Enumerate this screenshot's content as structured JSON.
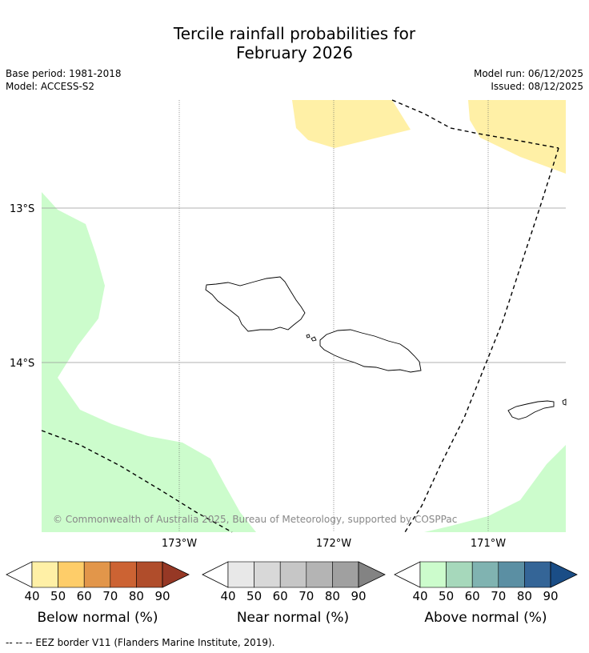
{
  "title_line1": "Tercile rainfall probabilities for",
  "title_line2": "February 2026",
  "meta": {
    "base_period": "Base period: 1981-2018",
    "model": "Model: ACCESS-S2",
    "model_run": "Model run: 06/12/2025",
    "issued": "Issued: 08/12/2025"
  },
  "map": {
    "lat_labels": [
      "13°S",
      "14°S"
    ],
    "lon_labels": [
      "173°W",
      "172°W",
      "171°W"
    ],
    "copyright": "© Commonwealth of Australia 2025, Bureau of Meteorology, supported by COSPPac",
    "colors": {
      "below_40": "#fff0a6",
      "above_40": "#ccfccc",
      "grid": "#999999",
      "eez": "#000000"
    }
  },
  "colorbars": [
    {
      "name": "below",
      "label": "Below normal (%)",
      "ticks": [
        "40",
        "50",
        "60",
        "70",
        "80",
        "90"
      ],
      "colors": [
        "#fff0a6",
        "#fecd69",
        "#e2964a",
        "#cc6333",
        "#b04d2b",
        "#963825"
      ]
    },
    {
      "name": "near",
      "label": "Near normal (%)",
      "ticks": [
        "40",
        "50",
        "60",
        "70",
        "80",
        "90"
      ],
      "colors": [
        "#e8e8e8",
        "#d8d8d8",
        "#c6c6c6",
        "#b4b4b4",
        "#a0a0a0",
        "#838383"
      ]
    },
    {
      "name": "above",
      "label": "Above normal (%)",
      "ticks": [
        "40",
        "50",
        "60",
        "70",
        "80",
        "90"
      ],
      "colors": [
        "#ccfccc",
        "#a6d8bb",
        "#80b3b1",
        "#5b8fa3",
        "#346597",
        "#1a4d86"
      ]
    }
  ],
  "footer": "--  --  -- EEZ border V11 (Flanders Marine Institute, 2019)."
}
